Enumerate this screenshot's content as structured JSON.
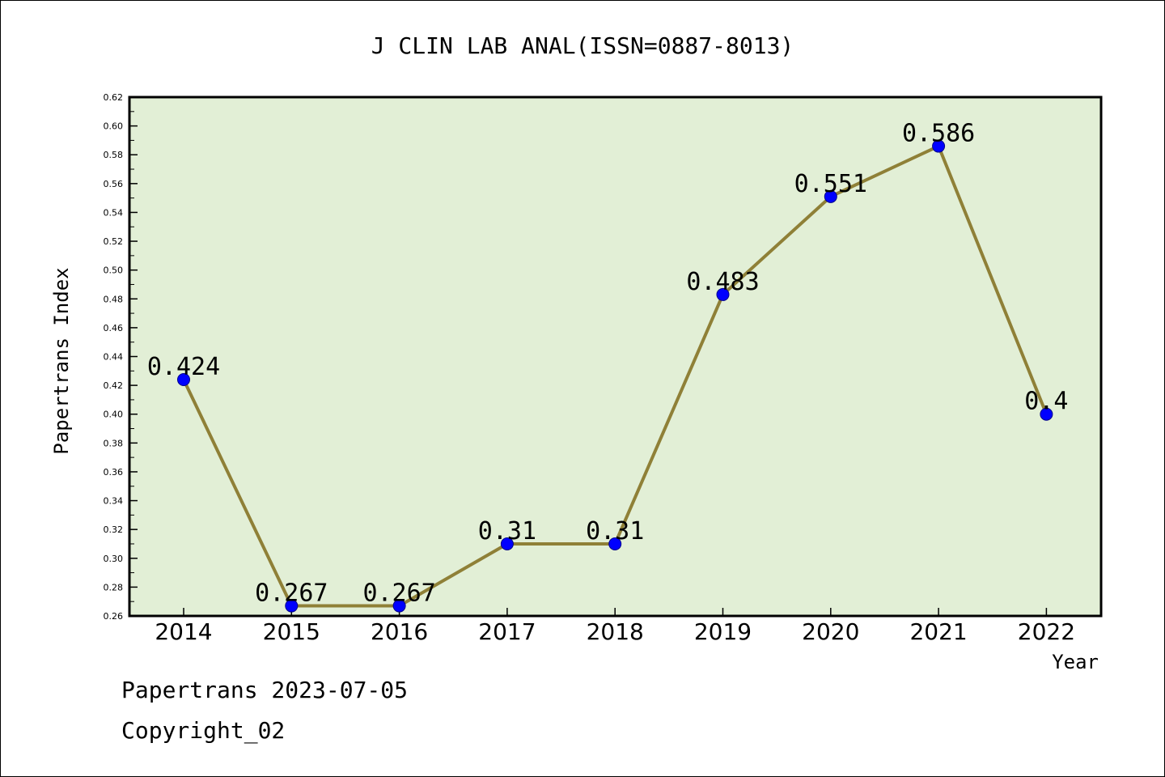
{
  "chart_data": {
    "type": "line",
    "title": "J CLIN LAB ANAL(ISSN=0887-8013)",
    "xlabel": "Year",
    "ylabel": "Papertrans Index",
    "categories": [
      "2014",
      "2015",
      "2016",
      "2017",
      "2018",
      "2019",
      "2020",
      "2021",
      "2022"
    ],
    "series": [
      {
        "values": [
          0.424,
          0.267,
          0.267,
          0.31,
          0.31,
          0.483,
          0.551,
          0.586,
          0.4
        ],
        "labels": [
          "0.424",
          "0.267",
          "0.267",
          "0.31",
          "0.31",
          "0.483",
          "0.551",
          "0.586",
          "0.4"
        ]
      }
    ],
    "ylim": [
      0.26,
      0.62
    ],
    "yticks": [
      "0.26",
      "0.28",
      "0.30",
      "0.32",
      "0.34",
      "0.36",
      "0.38",
      "0.40",
      "0.42",
      "0.44",
      "0.46",
      "0.48",
      "0.50",
      "0.52",
      "0.54",
      "0.56",
      "0.58",
      "0.60",
      "0.62"
    ],
    "grid": false,
    "colors": {
      "plot_bg": "#e2efd6",
      "line": "#8f8037",
      "marker": "#0000ff"
    }
  },
  "footer": {
    "source": "Papertrans 2023-07-05",
    "copyright": "Copyright_02"
  }
}
